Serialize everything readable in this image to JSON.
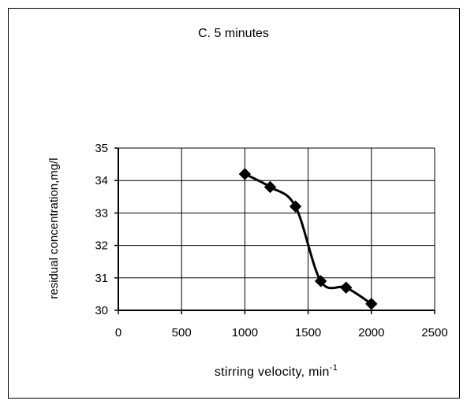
{
  "chart_data": {
    "type": "line",
    "title": "C. 5 minutes",
    "xlabel": "stirring velocity, min",
    "xlabel_superscript": "-1",
    "ylabel": "residual concentration,mg/l",
    "xlim": [
      0,
      2500
    ],
    "ylim": [
      30,
      35
    ],
    "x_ticks": [
      0,
      500,
      1000,
      1500,
      2000,
      2500
    ],
    "y_ticks": [
      30,
      31,
      32,
      33,
      34,
      35
    ],
    "grid": true,
    "legend": "none",
    "series": [
      {
        "x": [
          1000,
          1200,
          1400,
          1600,
          1800,
          2000
        ],
        "values": [
          34.2,
          33.8,
          33.2,
          30.9,
          30.7,
          30.2
        ],
        "marker": "diamond",
        "color": "#000000",
        "smooth": true
      }
    ]
  }
}
